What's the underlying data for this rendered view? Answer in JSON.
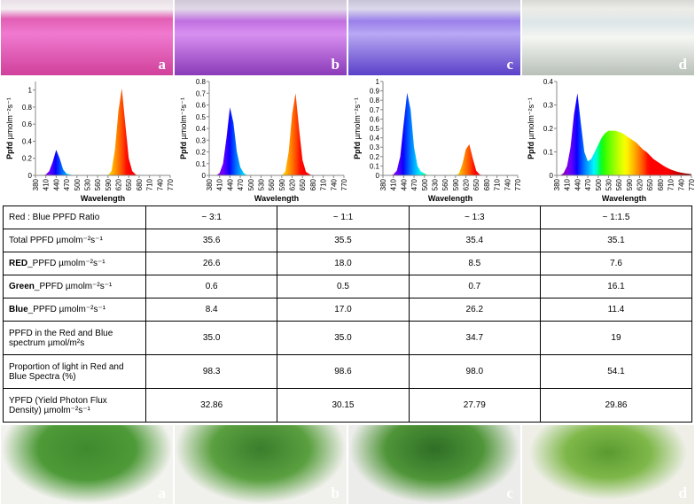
{
  "photos_top": [
    "a",
    "b",
    "c",
    "d"
  ],
  "chart_data": [
    {
      "type": "area",
      "y_label": [
        "Ppfd",
        " µmolm⁻²s⁻¹"
      ],
      "x_label": "Wavelength",
      "xlim": [
        380,
        770
      ],
      "xticks": [
        380,
        410,
        440,
        470,
        500,
        530,
        560,
        590,
        620,
        650,
        680,
        710,
        740,
        770
      ],
      "ylim": [
        0,
        1.1
      ],
      "yticks": [
        0,
        0.2,
        0.4,
        0.6,
        0.8,
        1
      ],
      "x": [
        380,
        390,
        400,
        410,
        420,
        430,
        440,
        450,
        460,
        470,
        480,
        490,
        500,
        510,
        520,
        530,
        540,
        550,
        560,
        570,
        580,
        590,
        600,
        610,
        620,
        630,
        640,
        650,
        660,
        670,
        680,
        690,
        700,
        710,
        720,
        730,
        740,
        750,
        760,
        770
      ],
      "values": [
        0,
        0,
        0,
        0.01,
        0.05,
        0.16,
        0.3,
        0.2,
        0.07,
        0.02,
        0.01,
        0,
        0,
        0,
        0,
        0,
        0,
        0,
        0,
        0,
        0,
        0,
        0.05,
        0.3,
        0.75,
        1.02,
        0.6,
        0.2,
        0.05,
        0.01,
        0,
        0,
        0,
        0,
        0,
        0,
        0,
        0,
        0,
        0
      ]
    },
    {
      "type": "area",
      "y_label": [
        "Ppfd",
        " µmolm⁻²s⁻¹"
      ],
      "x_label": "Wavelength",
      "xlim": [
        380,
        770
      ],
      "xticks": [
        380,
        410,
        440,
        470,
        500,
        530,
        560,
        590,
        620,
        650,
        680,
        710,
        740,
        770
      ],
      "ylim": [
        0,
        0.8
      ],
      "yticks": [
        0,
        0.1,
        0.2,
        0.3,
        0.4,
        0.5,
        0.6,
        0.7,
        0.8
      ],
      "x": [
        380,
        390,
        400,
        410,
        420,
        430,
        440,
        450,
        460,
        470,
        480,
        490,
        500,
        510,
        520,
        530,
        540,
        550,
        560,
        570,
        580,
        590,
        600,
        610,
        620,
        630,
        640,
        650,
        660,
        670,
        680,
        690,
        700,
        710,
        720,
        730,
        740,
        750,
        760,
        770
      ],
      "values": [
        0,
        0,
        0,
        0.02,
        0.1,
        0.32,
        0.58,
        0.45,
        0.2,
        0.07,
        0.02,
        0,
        0,
        0,
        0,
        0,
        0,
        0,
        0,
        0,
        0,
        0,
        0.03,
        0.2,
        0.52,
        0.7,
        0.4,
        0.13,
        0.03,
        0.01,
        0,
        0,
        0,
        0,
        0,
        0,
        0,
        0,
        0,
        0
      ]
    },
    {
      "type": "area",
      "y_label": [
        "Ppfd",
        " µmolm⁻²s⁻¹"
      ],
      "x_label": "Wavelength",
      "xlim": [
        380,
        770
      ],
      "xticks": [
        380,
        410,
        440,
        470,
        500,
        530,
        560,
        590,
        620,
        650,
        680,
        710,
        740,
        770
      ],
      "ylim": [
        0,
        1
      ],
      "yticks": [
        0,
        0.1,
        0.2,
        0.3,
        0.4,
        0.5,
        0.6,
        0.7,
        0.8,
        0.9,
        1
      ],
      "x": [
        380,
        390,
        400,
        410,
        420,
        430,
        440,
        450,
        460,
        470,
        480,
        490,
        500,
        510,
        520,
        530,
        540,
        550,
        560,
        570,
        580,
        590,
        600,
        610,
        620,
        630,
        640,
        650,
        660,
        670,
        680,
        690,
        700,
        710,
        720,
        730,
        740,
        750,
        760,
        770
      ],
      "values": [
        0,
        0,
        0,
        0.01,
        0.05,
        0.2,
        0.55,
        0.88,
        0.7,
        0.3,
        0.1,
        0.04,
        0.02,
        0,
        0,
        0,
        0,
        0,
        0,
        0,
        0,
        0,
        0.02,
        0.12,
        0.28,
        0.33,
        0.18,
        0.05,
        0.01,
        0,
        0,
        0,
        0,
        0,
        0,
        0,
        0,
        0,
        0,
        0
      ]
    },
    {
      "type": "area",
      "y_label": [
        "Ppfd",
        " µmolm⁻²s⁻¹"
      ],
      "x_label": "Wavelength",
      "xlim": [
        380,
        770
      ],
      "xticks": [
        380,
        410,
        440,
        470,
        500,
        530,
        560,
        590,
        620,
        650,
        680,
        710,
        740,
        770
      ],
      "ylim": [
        0,
        0.4
      ],
      "yticks": [
        0,
        0.1,
        0.2,
        0.3,
        0.4
      ],
      "x": [
        380,
        390,
        400,
        410,
        420,
        430,
        440,
        450,
        460,
        470,
        480,
        490,
        500,
        510,
        520,
        530,
        540,
        550,
        560,
        570,
        580,
        590,
        600,
        610,
        620,
        630,
        640,
        650,
        660,
        670,
        680,
        690,
        700,
        710,
        720,
        730,
        740,
        750,
        760,
        770
      ],
      "values": [
        0,
        0,
        0.01,
        0.04,
        0.12,
        0.26,
        0.35,
        0.22,
        0.1,
        0.06,
        0.07,
        0.1,
        0.13,
        0.16,
        0.18,
        0.19,
        0.19,
        0.19,
        0.185,
        0.18,
        0.17,
        0.16,
        0.15,
        0.14,
        0.125,
        0.11,
        0.1,
        0.085,
        0.07,
        0.06,
        0.05,
        0.04,
        0.032,
        0.025,
        0.02,
        0.015,
        0.012,
        0.009,
        0.007,
        0.005
      ]
    }
  ],
  "table": {
    "rows": [
      {
        "label": "Red : Blue PPFD Ratio",
        "values": [
          "~ 3:1",
          "~ 1:1",
          "~ 1:3",
          "~ 1:1.5"
        ]
      },
      {
        "label": "Total PPFD µmolm⁻²s⁻¹",
        "values": [
          "35.6",
          "35.5",
          "35.4",
          "35.1"
        ]
      },
      {
        "label_bold": "RED",
        "label": "_PPFD µmolm⁻²s⁻¹",
        "values": [
          "26.6",
          "18.0",
          "8.5",
          "7.6"
        ]
      },
      {
        "label_bold": "Green",
        "label": "_PPFD µmolm⁻²s⁻¹",
        "values": [
          "0.6",
          "0.5",
          "0.7",
          "16.1"
        ]
      },
      {
        "label_bold": "Blue",
        "label": "_PPFD µmolm⁻²s⁻¹",
        "values": [
          "8.4",
          "17.0",
          "26.2",
          "11.4"
        ]
      },
      {
        "label": "PPFD in the Red and Blue spectrum µmol/m²s",
        "values": [
          "35.0",
          "35.0",
          "34.7",
          "19"
        ]
      },
      {
        "label": "Proportion of light in Red and Blue Spectra (%)",
        "values": [
          "98.3",
          "98.6",
          "98.0",
          "54.1"
        ]
      },
      {
        "label": "YPFD (Yield Photon Flux Density) µmolm⁻²s⁻¹",
        "values": [
          "32.86",
          "30.15",
          "27.79",
          "29.86"
        ]
      }
    ]
  },
  "photos_bottom": [
    "a",
    "b",
    "c",
    "d"
  ]
}
